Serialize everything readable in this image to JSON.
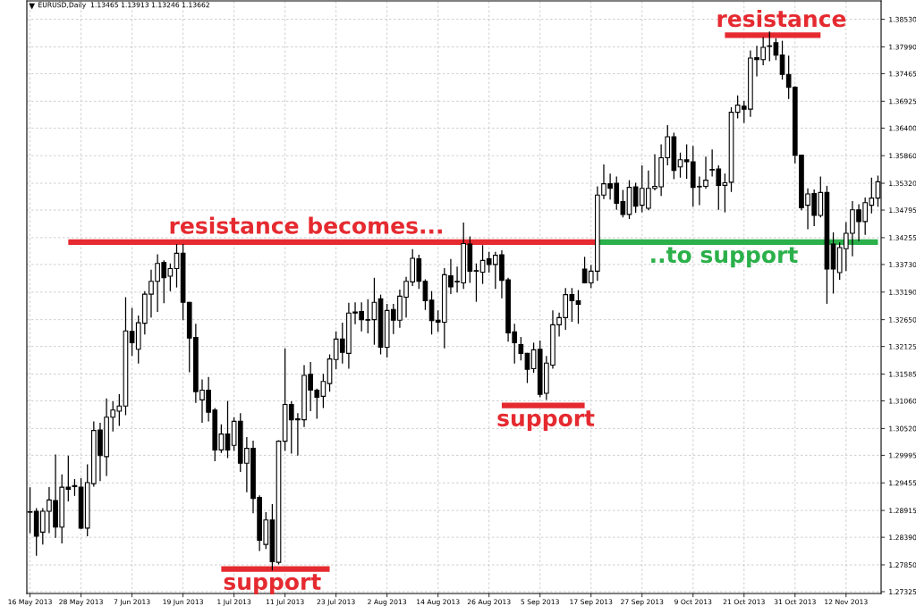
{
  "chart_data": {
    "type": "candlestick",
    "title": "EURUSD,Daily  1.13465 1.13913 1.13246 1.13662",
    "categories": [
      "16 May 2013",
      null,
      null,
      null,
      null,
      null,
      null,
      null,
      "28 May 2013",
      null,
      null,
      null,
      null,
      null,
      null,
      null,
      "7 Jun 2013",
      null,
      null,
      null,
      null,
      null,
      null,
      null,
      "19 Jun 2013",
      null,
      null,
      null,
      null,
      null,
      null,
      null,
      "1 Jul 2013",
      null,
      null,
      null,
      null,
      null,
      null,
      null,
      "11 Jul 2013",
      null,
      null,
      null,
      null,
      null,
      null,
      null,
      "23 Jul 2013",
      null,
      null,
      null,
      null,
      null,
      null,
      null,
      "2 Aug 2013",
      null,
      null,
      null,
      null,
      null,
      null,
      null,
      "14 Aug 2013",
      null,
      null,
      null,
      null,
      null,
      null,
      null,
      "26 Aug 2013",
      null,
      null,
      null,
      null,
      null,
      null,
      null,
      "5 Sep 2013",
      null,
      null,
      null,
      null,
      null,
      null,
      null,
      "17 Sep 2013",
      null,
      null,
      null,
      null,
      null,
      null,
      null,
      "27 Sep 2013",
      null,
      null,
      null,
      null,
      null,
      null,
      null,
      "9 Oct 2013",
      null,
      null,
      null,
      null,
      null,
      null,
      null,
      "21 Oct 2013",
      null,
      null,
      null,
      null,
      null,
      null,
      null,
      "31 Oct 2013",
      null,
      null,
      null,
      null,
      null,
      null,
      null,
      "12 Nov 2013",
      null,
      null,
      null,
      null,
      null
    ],
    "ohlc": [
      [
        1.2888,
        1.2937,
        1.2847,
        1.2889
      ],
      [
        1.289,
        1.2896,
        1.2803,
        1.2841
      ],
      [
        1.2849,
        1.2896,
        1.2825,
        1.289
      ],
      [
        1.289,
        1.2937,
        1.2847,
        1.2912
      ],
      [
        1.2911,
        1.3001,
        1.2838,
        1.2859
      ],
      [
        1.2859,
        1.2962,
        1.2827,
        1.2937
      ],
      [
        1.2937,
        1.2999,
        1.2909,
        1.2933
      ],
      [
        1.294,
        1.2953,
        1.292,
        1.2938
      ],
      [
        1.2937,
        1.2955,
        1.2855,
        1.2857
      ],
      [
        1.2857,
        1.2982,
        1.2841,
        1.2946
      ],
      [
        1.2944,
        1.3066,
        1.2938,
        1.3048
      ],
      [
        1.3049,
        1.3063,
        1.2949,
        1.2999
      ],
      [
        1.2997,
        1.3111,
        1.2959,
        1.3074
      ],
      [
        1.3074,
        1.3105,
        1.3046,
        1.3088
      ],
      [
        1.3086,
        1.3119,
        1.3057,
        1.3096
      ],
      [
        1.3096,
        1.3309,
        1.3078,
        1.3243
      ],
      [
        1.3242,
        1.3288,
        1.3194,
        1.322
      ],
      [
        1.3207,
        1.3273,
        1.3179,
        1.3259
      ],
      [
        1.3258,
        1.3321,
        1.3236,
        1.3315
      ],
      [
        1.3315,
        1.3363,
        1.3269,
        1.334
      ],
      [
        1.334,
        1.3393,
        1.328,
        1.3375
      ],
      [
        1.3377,
        1.3381,
        1.3297,
        1.3347
      ],
      [
        1.335,
        1.3375,
        1.3321,
        1.3365
      ],
      [
        1.3365,
        1.3413,
        1.3328,
        1.3395
      ],
      [
        1.3395,
        1.3413,
        1.3264,
        1.3299
      ],
      [
        1.3299,
        1.33,
        1.3162,
        1.3229
      ],
      [
        1.323,
        1.3257,
        1.3102,
        1.3124
      ],
      [
        1.3108,
        1.3148,
        1.3063,
        1.3127
      ],
      [
        1.3127,
        1.3153,
        1.3066,
        1.3084
      ],
      [
        1.3088,
        1.3092,
        1.2988,
        1.301
      ],
      [
        1.301,
        1.306,
        1.3004,
        1.3041
      ],
      [
        1.3041,
        1.3106,
        1.2994,
        1.301
      ],
      [
        1.3019,
        1.3074,
        1.3008,
        1.3066
      ],
      [
        1.3066,
        1.3082,
        1.2967,
        1.2984
      ],
      [
        1.2984,
        1.3035,
        1.2927,
        1.3013
      ],
      [
        1.3013,
        1.3028,
        1.2886,
        1.2915
      ],
      [
        1.2917,
        1.2921,
        1.2812,
        1.2833
      ],
      [
        1.2825,
        1.2888,
        1.2816,
        1.2873
      ],
      [
        1.2873,
        1.2904,
        1.2774,
        1.2791
      ],
      [
        1.279,
        1.3029,
        1.2786,
        1.3027
      ],
      [
        1.3027,
        1.3209,
        1.3008,
        1.3099
      ],
      [
        1.3099,
        1.3105,
        1.3003,
        1.3069
      ],
      [
        1.3071,
        1.3082,
        1.2999,
        1.3069
      ],
      [
        1.3069,
        1.3176,
        1.3055,
        1.3156
      ],
      [
        1.3158,
        1.3182,
        1.3086,
        1.3127
      ],
      [
        1.3127,
        1.313,
        1.3071,
        1.3113
      ],
      [
        1.3115,
        1.3159,
        1.3092,
        1.3144
      ],
      [
        1.314,
        1.3197,
        1.3124,
        1.3188
      ],
      [
        1.3187,
        1.3242,
        1.3168,
        1.3227
      ],
      [
        1.3227,
        1.3259,
        1.3179,
        1.3201
      ],
      [
        1.3199,
        1.3298,
        1.3169,
        1.3278
      ],
      [
        1.328,
        1.3299,
        1.3256,
        1.3278
      ],
      [
        1.3281,
        1.3299,
        1.3242,
        1.3265
      ],
      [
        1.3265,
        1.3305,
        1.3238,
        1.3264
      ],
      [
        1.3265,
        1.3347,
        1.3216,
        1.3299
      ],
      [
        1.3306,
        1.3314,
        1.3197,
        1.3211
      ],
      [
        1.3211,
        1.3296,
        1.3191,
        1.3283
      ],
      [
        1.3285,
        1.3296,
        1.3237,
        1.3264
      ],
      [
        1.3264,
        1.3324,
        1.3249,
        1.3311
      ],
      [
        1.3309,
        1.3349,
        1.3269,
        1.334
      ],
      [
        1.3339,
        1.3403,
        1.3331,
        1.3385
      ],
      [
        1.3384,
        1.3392,
        1.3325,
        1.334
      ],
      [
        1.334,
        1.3344,
        1.3284,
        1.3302
      ],
      [
        1.3303,
        1.3321,
        1.3236,
        1.3263
      ],
      [
        1.3264,
        1.3283,
        1.3241,
        1.326
      ],
      [
        1.326,
        1.3366,
        1.3209,
        1.3353
      ],
      [
        1.3351,
        1.3384,
        1.3315,
        1.3329
      ],
      [
        1.334,
        1.3369,
        1.3318,
        1.3339
      ],
      [
        1.3337,
        1.3455,
        1.3325,
        1.3414
      ],
      [
        1.3413,
        1.3428,
        1.3337,
        1.336
      ],
      [
        1.3361,
        1.3375,
        1.33,
        1.336
      ],
      [
        1.3358,
        1.3411,
        1.3335,
        1.3381
      ],
      [
        1.3384,
        1.3398,
        1.3357,
        1.3373
      ],
      [
        1.3373,
        1.3398,
        1.3325,
        1.3391
      ],
      [
        1.3392,
        1.3401,
        1.3307,
        1.3342
      ],
      [
        1.3343,
        1.3347,
        1.3222,
        1.3239
      ],
      [
        1.3241,
        1.3257,
        1.3179,
        1.322
      ],
      [
        1.3216,
        1.3231,
        1.3185,
        1.3199
      ],
      [
        1.3199,
        1.32,
        1.3141,
        1.3168
      ],
      [
        1.3169,
        1.322,
        1.3161,
        1.3206
      ],
      [
        1.3207,
        1.3224,
        1.3113,
        1.3119
      ],
      [
        1.3121,
        1.3194,
        1.3108,
        1.318
      ],
      [
        1.3176,
        1.3283,
        1.3169,
        1.3255
      ],
      [
        1.3255,
        1.3279,
        1.3232,
        1.3269
      ],
      [
        1.3269,
        1.3327,
        1.3245,
        1.3314
      ],
      [
        1.3314,
        1.3327,
        1.3261,
        1.3302
      ],
      [
        1.3302,
        1.3323,
        1.3257,
        1.3295
      ],
      [
        1.3364,
        1.3388,
        1.3336,
        1.3337
      ],
      [
        1.3337,
        1.3372,
        1.3327,
        1.336
      ],
      [
        1.336,
        1.3526,
        1.3341,
        1.3509
      ],
      [
        1.3509,
        1.3569,
        1.3501,
        1.3531
      ],
      [
        1.3531,
        1.3551,
        1.35,
        1.3522
      ],
      [
        1.3532,
        1.3545,
        1.348,
        1.3493
      ],
      [
        1.3496,
        1.3519,
        1.3465,
        1.3471
      ],
      [
        1.3471,
        1.3538,
        1.3462,
        1.3524
      ],
      [
        1.3525,
        1.3533,
        1.3474,
        1.3487
      ],
      [
        1.3489,
        1.3567,
        1.3475,
        1.3522
      ],
      [
        1.3483,
        1.3557,
        1.3479,
        1.3522
      ],
      [
        1.3522,
        1.3589,
        1.3518,
        1.3526
      ],
      [
        1.3525,
        1.3608,
        1.3507,
        1.3582
      ],
      [
        1.3582,
        1.3646,
        1.3567,
        1.3623
      ],
      [
        1.3623,
        1.3631,
        1.354,
        1.3557
      ],
      [
        1.3564,
        1.3592,
        1.3543,
        1.3578
      ],
      [
        1.3578,
        1.3608,
        1.3541,
        1.3574
      ],
      [
        1.3574,
        1.3605,
        1.3486,
        1.3524
      ],
      [
        1.3526,
        1.3545,
        1.3489,
        1.3525
      ],
      [
        1.3526,
        1.3584,
        1.3521,
        1.3538
      ],
      [
        1.3559,
        1.3598,
        1.3545,
        1.3558
      ],
      [
        1.356,
        1.3567,
        1.348,
        1.3528
      ],
      [
        1.3528,
        1.3551,
        1.3475,
        1.3533
      ],
      [
        1.3534,
        1.3681,
        1.3515,
        1.3671
      ],
      [
        1.3671,
        1.3704,
        1.3659,
        1.3685
      ],
      [
        1.3683,
        1.3693,
        1.365,
        1.3677
      ],
      [
        1.3677,
        1.3792,
        1.3662,
        1.3777
      ],
      [
        1.3778,
        1.3801,
        1.3741,
        1.3774
      ],
      [
        1.3774,
        1.3818,
        1.3763,
        1.3798
      ],
      [
        1.38,
        1.3829,
        1.3771,
        1.3801
      ],
      [
        1.3807,
        1.3816,
        1.3773,
        1.3783
      ],
      [
        1.3783,
        1.3811,
        1.3735,
        1.3745
      ],
      [
        1.3745,
        1.3782,
        1.3697,
        1.372
      ],
      [
        1.372,
        1.3722,
        1.3571,
        1.3587
      ],
      [
        1.3587,
        1.3588,
        1.3479,
        1.3484
      ],
      [
        1.3489,
        1.3522,
        1.3442,
        1.3511
      ],
      [
        1.3512,
        1.352,
        1.3448,
        1.3469
      ],
      [
        1.3469,
        1.3545,
        1.3465,
        1.3514
      ],
      [
        1.3514,
        1.3527,
        1.3296,
        1.3364
      ],
      [
        1.3413,
        1.3436,
        1.3316,
        1.3364
      ],
      [
        1.3357,
        1.3416,
        1.3343,
        1.3406
      ],
      [
        1.3404,
        1.3456,
        1.336,
        1.3434
      ],
      [
        1.3434,
        1.3497,
        1.3389,
        1.348
      ],
      [
        1.348,
        1.3491,
        1.3419,
        1.3457
      ],
      [
        1.3457,
        1.3504,
        1.3431,
        1.3494
      ],
      [
        1.3489,
        1.3543,
        1.3473,
        1.3503
      ],
      [
        1.3503,
        1.3547,
        1.3486,
        1.3535
      ]
    ],
    "series": [
      {
        "type": "line",
        "name": "resistance becomes...",
        "color": "#e52a30",
        "values": [
          null,
          null,
          null,
          null,
          null,
          null,
          1.3417,
          1.3417,
          1.3417,
          1.3417,
          1.3417,
          1.3417,
          1.3417,
          1.3417,
          1.3417,
          1.3417,
          1.3417,
          1.3417,
          1.3417,
          1.3417,
          1.3417,
          1.3417,
          1.3417,
          1.3417,
          1.3417,
          1.3417,
          1.3417,
          1.3417,
          1.3417,
          1.3417,
          1.3417,
          1.3417,
          1.3417,
          1.3417,
          1.3417,
          1.3417,
          1.3417,
          1.3417,
          1.3417,
          1.3417,
          1.3417,
          1.3417,
          1.3417,
          1.3417,
          1.3417,
          1.3417,
          1.3417,
          1.3417,
          1.3417,
          1.3417,
          1.3417,
          1.3417,
          1.3417,
          1.3417,
          1.3417,
          1.3417,
          1.3417,
          1.3417,
          1.3417,
          1.3417,
          1.3417,
          1.3417,
          1.3417,
          1.3417,
          1.3417,
          1.3417,
          1.3417,
          1.3417,
          1.3417,
          1.3417,
          1.3417,
          1.3417,
          1.3417,
          1.3417,
          1.3417,
          1.3417,
          1.3417,
          1.3417,
          1.3417,
          1.3417,
          1.3417,
          1.3417,
          1.3417,
          1.3417,
          1.3417,
          1.3417,
          1.3417,
          1.3417,
          1.3417,
          1.3417,
          null,
          null,
          null,
          null,
          null,
          null,
          null,
          null,
          null,
          null,
          null,
          null,
          null,
          null,
          null,
          null,
          null,
          null,
          null,
          null,
          null,
          null,
          null,
          null,
          null,
          null,
          null,
          null,
          null,
          null,
          null,
          null,
          null,
          null,
          null,
          null,
          null,
          null,
          null,
          null,
          null,
          null,
          null,
          null
        ]
      },
      {
        "type": "line",
        "name": "..to support",
        "color": "#2bb04a",
        "values": [
          null,
          null,
          null,
          null,
          null,
          null,
          null,
          null,
          null,
          null,
          null,
          null,
          null,
          null,
          null,
          null,
          null,
          null,
          null,
          null,
          null,
          null,
          null,
          null,
          null,
          null,
          null,
          null,
          null,
          null,
          null,
          null,
          null,
          null,
          null,
          null,
          null,
          null,
          null,
          null,
          null,
          null,
          null,
          null,
          null,
          null,
          null,
          null,
          null,
          null,
          null,
          null,
          null,
          null,
          null,
          null,
          null,
          null,
          null,
          null,
          null,
          null,
          null,
          null,
          null,
          null,
          null,
          null,
          null,
          null,
          null,
          null,
          null,
          null,
          null,
          null,
          null,
          null,
          null,
          null,
          null,
          null,
          null,
          null,
          null,
          null,
          null,
          null,
          null,
          1.3417,
          1.3417,
          1.3417,
          1.3417,
          1.3417,
          1.3417,
          1.3417,
          1.3417,
          1.3417,
          1.3417,
          1.3417,
          1.3417,
          1.3417,
          1.3417,
          1.3417,
          1.3417,
          1.3417,
          1.3417,
          1.3417,
          1.3417,
          1.3417,
          1.3417,
          1.3417,
          1.3417,
          1.3417,
          1.3417,
          1.3417,
          1.3417,
          1.3417,
          1.3417,
          1.3417,
          1.3417,
          1.3417,
          1.3417,
          1.3417,
          1.3417,
          1.3417,
          1.3417,
          1.3417,
          1.3417,
          1.3417,
          1.3417,
          1.3417,
          1.3417,
          1.3417
        ]
      },
      {
        "type": "line",
        "name": "resistance",
        "color": "#e52a30",
        "values": [
          null,
          null,
          null,
          null,
          null,
          null,
          null,
          null,
          null,
          null,
          null,
          null,
          null,
          null,
          null,
          null,
          null,
          null,
          null,
          null,
          null,
          null,
          null,
          null,
          null,
          null,
          null,
          null,
          null,
          null,
          null,
          null,
          null,
          null,
          null,
          null,
          null,
          null,
          null,
          null,
          null,
          null,
          null,
          null,
          null,
          null,
          null,
          null,
          null,
          null,
          null,
          null,
          null,
          null,
          null,
          null,
          null,
          null,
          null,
          null,
          null,
          null,
          null,
          null,
          null,
          null,
          null,
          null,
          null,
          null,
          null,
          null,
          null,
          null,
          null,
          null,
          null,
          null,
          null,
          null,
          null,
          null,
          null,
          null,
          null,
          null,
          null,
          null,
          null,
          null,
          null,
          null,
          null,
          null,
          null,
          null,
          null,
          null,
          null,
          null,
          null,
          null,
          null,
          null,
          null,
          null,
          null,
          null,
          null,
          1.3822,
          1.3822,
          1.3822,
          1.3822,
          1.3822,
          1.3822,
          1.3822,
          1.3822,
          1.3822,
          1.3822,
          1.3822,
          1.3822,
          1.3822,
          1.3822,
          1.3822,
          1.3822,
          null,
          null,
          null,
          null,
          null,
          null,
          null,
          null,
          null
        ]
      },
      {
        "type": "line",
        "name": "support",
        "color": "#e52a30",
        "values": [
          null,
          null,
          null,
          null,
          null,
          null,
          null,
          null,
          null,
          null,
          null,
          null,
          null,
          null,
          null,
          null,
          null,
          null,
          null,
          null,
          null,
          null,
          null,
          null,
          null,
          null,
          null,
          null,
          null,
          null,
          null,
          null,
          null,
          null,
          null,
          null,
          null,
          null,
          null,
          null,
          null,
          null,
          null,
          null,
          null,
          null,
          null,
          null,
          null,
          null,
          null,
          null,
          null,
          null,
          null,
          null,
          null,
          null,
          null,
          null,
          null,
          null,
          null,
          null,
          null,
          null,
          null,
          null,
          null,
          null,
          null,
          null,
          null,
          null,
          1.3097,
          1.3097,
          1.3097,
          1.3097,
          1.3097,
          1.3097,
          1.3097,
          1.3097,
          1.3097,
          1.3097,
          1.3097,
          1.3097,
          1.3097,
          1.3097,
          null,
          null,
          null,
          null,
          null,
          null,
          null,
          null,
          null,
          null,
          null,
          null,
          null,
          null,
          null,
          null,
          null,
          null,
          null,
          null,
          null,
          null,
          null,
          null,
          null,
          null,
          null,
          null,
          null,
          null,
          null,
          null,
          null,
          null,
          null,
          null,
          null,
          null,
          null,
          null,
          null,
          null,
          null,
          null,
          null,
          null
        ]
      },
      {
        "type": "line",
        "name": "support",
        "color": "#e52a30",
        "values": [
          null,
          null,
          null,
          null,
          null,
          null,
          null,
          null,
          null,
          null,
          null,
          null,
          null,
          null,
          null,
          null,
          null,
          null,
          null,
          null,
          null,
          null,
          null,
          null,
          null,
          null,
          null,
          null,
          null,
          null,
          1.2777,
          1.2777,
          1.2777,
          1.2777,
          1.2777,
          1.2777,
          1.2777,
          1.2777,
          1.2777,
          1.2777,
          1.2777,
          1.2777,
          1.2777,
          1.2777,
          1.2777,
          1.2777,
          1.2777,
          1.2777,
          null,
          null,
          null,
          null,
          null,
          null,
          null,
          null,
          null,
          null,
          null,
          null,
          null,
          null,
          null,
          null,
          null,
          null,
          null,
          null,
          null,
          null,
          null,
          null,
          null,
          null,
          null,
          null,
          null,
          null,
          null,
          null,
          null,
          null,
          null,
          null,
          null,
          null,
          null,
          null,
          null,
          null,
          null,
          null,
          null,
          null,
          null,
          null,
          null,
          null,
          null,
          null,
          null,
          null,
          null,
          null,
          null,
          null,
          null,
          null,
          null,
          null,
          null,
          null,
          null,
          null,
          null,
          null,
          null,
          null,
          null,
          null,
          null,
          null,
          null,
          null,
          null,
          null,
          null,
          null,
          null,
          null,
          null,
          null,
          null,
          null
        ]
      }
    ],
    "ylim": [
      1.2729,
      1.3889
    ],
    "yticks": [
      {
        "value": 1.3853,
        "label": "1.38530"
      },
      {
        "value": 1.3799,
        "label": "1.37990"
      },
      1.37465,
      1.36925,
      {
        "value": 1.364,
        "label": "1.36400"
      },
      {
        "value": 1.3586,
        "label": "1.35860"
      },
      {
        "value": 1.3532,
        "label": "1.35320"
      },
      1.34795,
      1.34255,
      {
        "value": 1.3373,
        "label": "1.33730"
      },
      {
        "value": 1.3319,
        "label": "1.33190"
      },
      {
        "value": 1.3265,
        "label": "1.32650"
      },
      1.32125,
      1.31585,
      {
        "value": 1.3106,
        "label": "1.31060"
      },
      {
        "value": 1.3052,
        "label": "1.30520"
      },
      1.29995,
      1.29455,
      1.28915,
      {
        "value": 1.2839,
        "label": "1.28390"
      },
      {
        "value": 1.2785,
        "label": "1.27850"
      },
      1.27325
    ],
    "grid": true
  }
}
